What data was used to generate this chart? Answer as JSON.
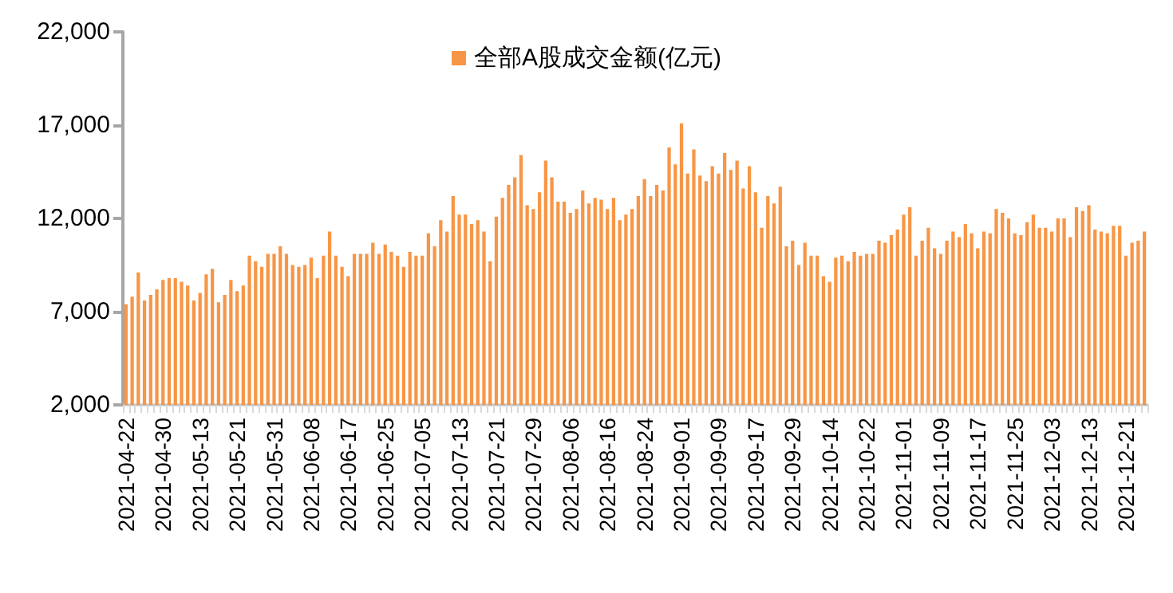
{
  "chart_data": {
    "type": "bar",
    "categories": [
      "2021-04-22",
      null,
      null,
      null,
      null,
      null,
      "2021-04-30",
      null,
      null,
      null,
      null,
      null,
      "2021-05-13",
      null,
      null,
      null,
      null,
      null,
      "2021-05-21",
      null,
      null,
      null,
      null,
      null,
      "2021-05-31",
      null,
      null,
      null,
      null,
      null,
      "2021-06-08",
      null,
      null,
      null,
      null,
      null,
      "2021-06-17",
      null,
      null,
      null,
      null,
      null,
      "2021-06-25",
      null,
      null,
      null,
      null,
      null,
      "2021-07-05",
      null,
      null,
      null,
      null,
      null,
      "2021-07-13",
      null,
      null,
      null,
      null,
      null,
      "2021-07-21",
      null,
      null,
      null,
      null,
      null,
      "2021-07-29",
      null,
      null,
      null,
      null,
      null,
      "2021-08-06",
      null,
      null,
      null,
      null,
      null,
      "2021-08-16",
      null,
      null,
      null,
      null,
      null,
      "2021-08-24",
      null,
      null,
      null,
      null,
      null,
      "2021-09-01",
      null,
      null,
      null,
      null,
      null,
      "2021-09-09",
      null,
      null,
      null,
      null,
      null,
      "2021-09-17",
      null,
      null,
      null,
      null,
      null,
      "2021-09-29",
      null,
      null,
      null,
      null,
      null,
      "2021-10-14",
      null,
      null,
      null,
      null,
      null,
      "2021-10-22",
      null,
      null,
      null,
      null,
      null,
      "2021-11-01",
      null,
      null,
      null,
      null,
      null,
      "2021-11-09",
      null,
      null,
      null,
      null,
      null,
      "2021-11-17",
      null,
      null,
      null,
      null,
      null,
      "2021-11-25",
      null,
      null,
      null,
      null,
      null,
      "2021-12-03",
      null,
      null,
      null,
      null,
      null,
      "2021-12-13",
      null,
      null,
      null,
      null,
      null,
      "2021-12-21",
      null,
      null,
      null
    ],
    "series": [
      {
        "name": "全部A股成交金额(亿元)",
        "color": "#f79646",
        "values": [
          7400,
          7800,
          9100,
          7600,
          7900,
          8200,
          8700,
          8800,
          8800,
          8600,
          8400,
          7600,
          8000,
          9000,
          9300,
          7500,
          7900,
          8700,
          8100,
          8400,
          10000,
          9700,
          9400,
          10100,
          10100,
          10500,
          10100,
          9500,
          9400,
          9500,
          9900,
          8800,
          10000,
          11300,
          10000,
          9400,
          8900,
          10100,
          10100,
          10100,
          10700,
          10100,
          10600,
          10200,
          10000,
          9400,
          10200,
          10000,
          10000,
          11200,
          10500,
          11900,
          11300,
          13200,
          12200,
          12200,
          11700,
          11900,
          11300,
          9700,
          12100,
          13100,
          13800,
          14200,
          15400,
          12700,
          12500,
          13400,
          15100,
          14200,
          12900,
          12900,
          12300,
          12500,
          13500,
          12800,
          13100,
          13000,
          12500,
          13100,
          11900,
          12200,
          12500,
          13200,
          14100,
          13200,
          13800,
          13500,
          15800,
          14900,
          17100,
          14400,
          15700,
          14300,
          14000,
          14800,
          14400,
          15500,
          14600,
          15100,
          13600,
          14800,
          13400,
          11500,
          13200,
          12800,
          13700,
          10500,
          10800,
          9500,
          10700,
          10000,
          10000,
          8900,
          8600,
          9900,
          10000,
          9700,
          10200,
          10000,
          10100,
          10100,
          10800,
          10700,
          11100,
          11400,
          12200,
          12600,
          10000,
          10800,
          11500,
          10400,
          10100,
          10800,
          11300,
          11000,
          11700,
          11200,
          10400,
          11300,
          11200,
          12500,
          12300,
          12000,
          11200,
          11100,
          11800,
          12200,
          11500,
          11500,
          11300,
          12000,
          12000,
          11000,
          12600,
          12400,
          12700,
          11400,
          11300,
          11200,
          11600,
          11600,
          10000,
          10700,
          10800,
          11300
        ]
      }
    ],
    "ylim": [
      2000,
      22000
    ],
    "yticks": [
      {
        "value": 2000,
        "label": "2,000"
      },
      {
        "value": 7000,
        "label": "7,000"
      },
      {
        "value": 12000,
        "label": "12,000"
      },
      {
        "value": 17000,
        "label": "17,000"
      },
      {
        "value": 22000,
        "label": "22,000"
      }
    ],
    "legend": "top"
  }
}
